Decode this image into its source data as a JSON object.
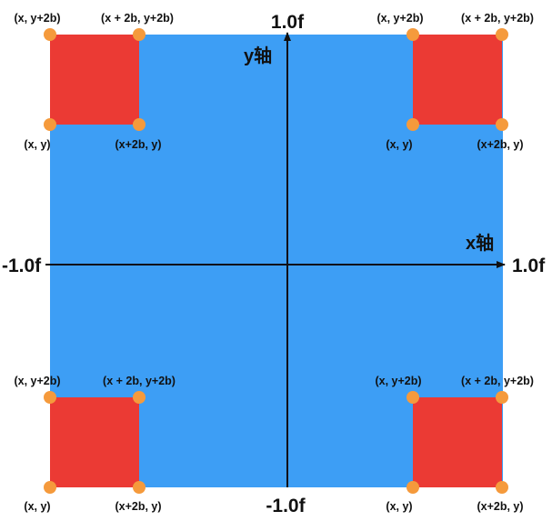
{
  "colors": {
    "background": "#3d9ef5",
    "square": "#eb3a34",
    "point": "#f59a3c",
    "axis": "#111111"
  },
  "axes": {
    "x_label": "x轴",
    "y_label": "y轴",
    "x_min_label": "-1.0f",
    "x_max_label": "1.0f",
    "y_min_label": "-1.0f",
    "y_max_label": "1.0f"
  },
  "squares": [
    {
      "position": "top-left",
      "corners": {
        "top_left": "(x, y+2b)",
        "top_right": "(x + 2b, y+2b)",
        "bottom_left": "(x, y)",
        "bottom_right": "(x+2b, y)"
      }
    },
    {
      "position": "top-right",
      "corners": {
        "top_left": "(x, y+2b)",
        "top_right": "(x + 2b, y+2b)",
        "bottom_left": "(x, y)",
        "bottom_right": "(x+2b, y)"
      }
    },
    {
      "position": "bottom-left",
      "corners": {
        "top_left": "(x, y+2b)",
        "top_right": "(x + 2b, y+2b)",
        "bottom_left": "(x, y)",
        "bottom_right": "(x+2b, y)"
      }
    },
    {
      "position": "bottom-right",
      "corners": {
        "top_left": "(x, y+2b)",
        "top_right": "(x + 2b, y+2b)",
        "bottom_left": "(x, y)",
        "bottom_right": "(x+2b, y)"
      }
    }
  ]
}
